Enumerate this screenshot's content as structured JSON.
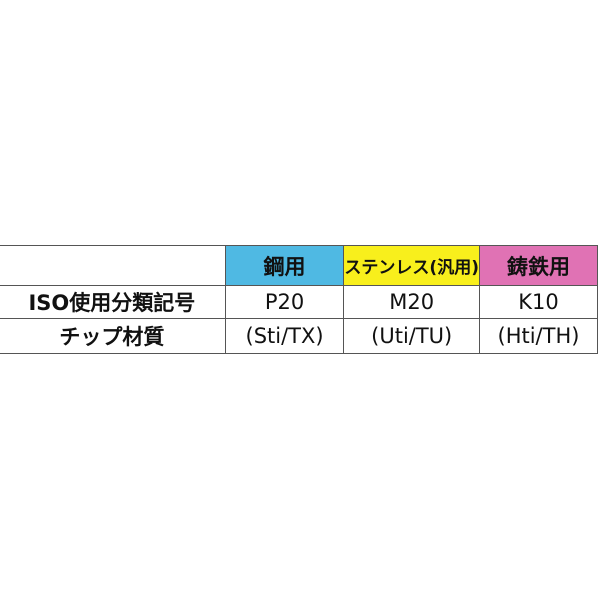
{
  "table": {
    "columns": [
      "鋼用",
      "ステンレス(汎用)",
      "鋳鉄用"
    ],
    "rows": [
      [
        "ISO使用分類記号",
        "P20",
        "M20",
        "K10"
      ],
      [
        "チップ材質",
        "(Sti/TX)",
        "(Uti/TU)",
        "(Hti/TH)"
      ]
    ]
  }
}
